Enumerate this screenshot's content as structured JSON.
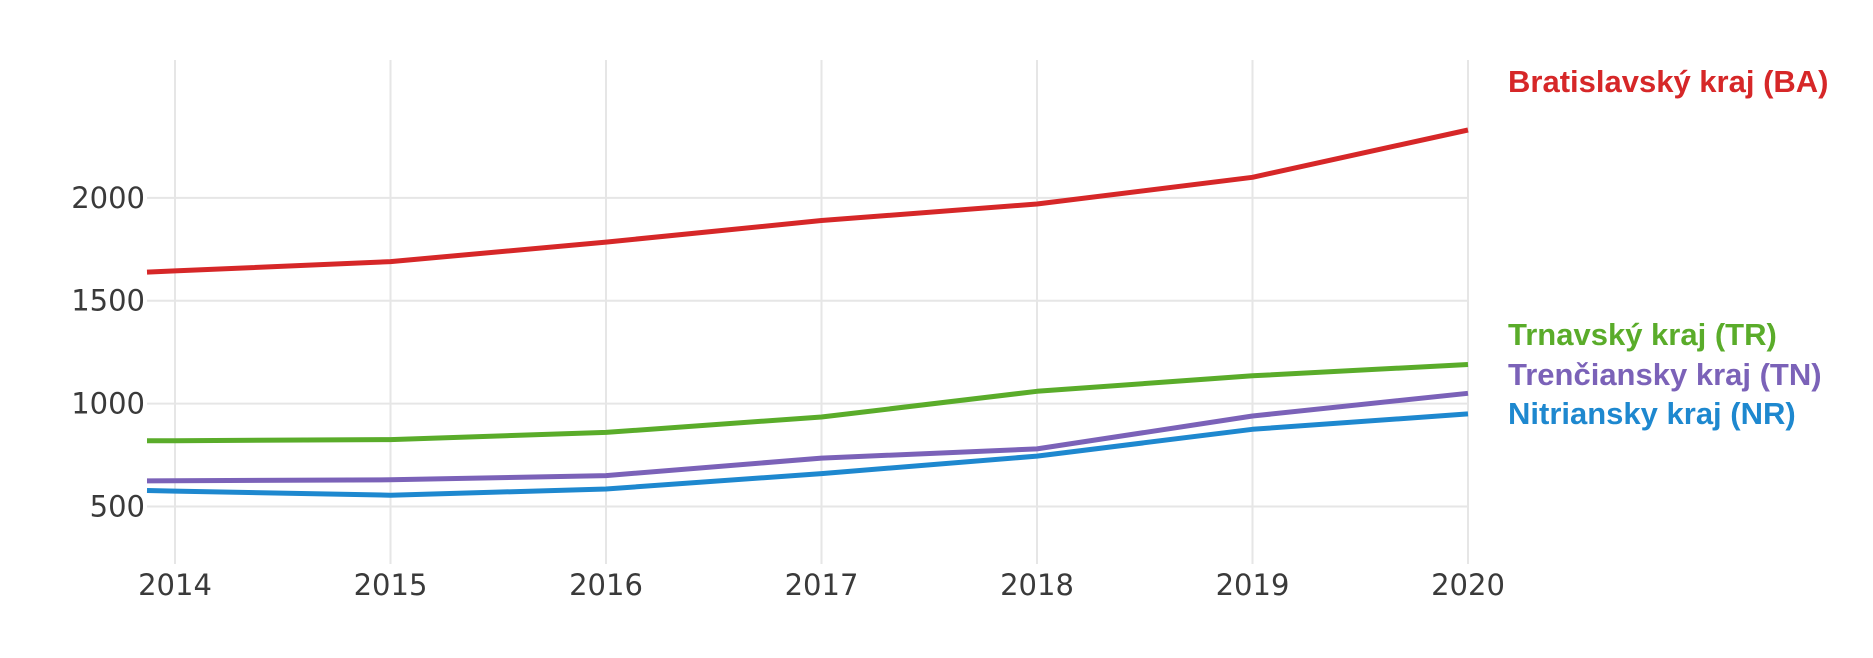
{
  "chart_data": {
    "type": "line",
    "title": "",
    "xlabel": "",
    "ylabel": "",
    "x": [
      2014,
      2015,
      2016,
      2017,
      2018,
      2019,
      2020
    ],
    "xlim": [
      2013.87,
      2020
    ],
    "ylim": [
      240,
      2670
    ],
    "yticks": [
      500,
      1000,
      1500,
      2000
    ],
    "grid": true,
    "legend": "labels at line ends (right)",
    "series": [
      {
        "name": "Bratislavský kraj (BA)",
        "color": "#d62728",
        "values": [
          1645,
          1690,
          1785,
          1890,
          1970,
          2100,
          2330
        ]
      },
      {
        "name": "Trnavský kraj (TR)",
        "color": "#5aac2a",
        "values": [
          820,
          825,
          860,
          935,
          1060,
          1135,
          1190
        ]
      },
      {
        "name": "Trenčiansky kraj (TN)",
        "color": "#7b62b8",
        "values": [
          625,
          630,
          650,
          735,
          780,
          940,
          1050
        ]
      },
      {
        "name": "Nitriansky kraj (NR)",
        "color": "#1e88cf",
        "values": [
          575,
          555,
          585,
          660,
          745,
          875,
          950
        ]
      }
    ]
  }
}
